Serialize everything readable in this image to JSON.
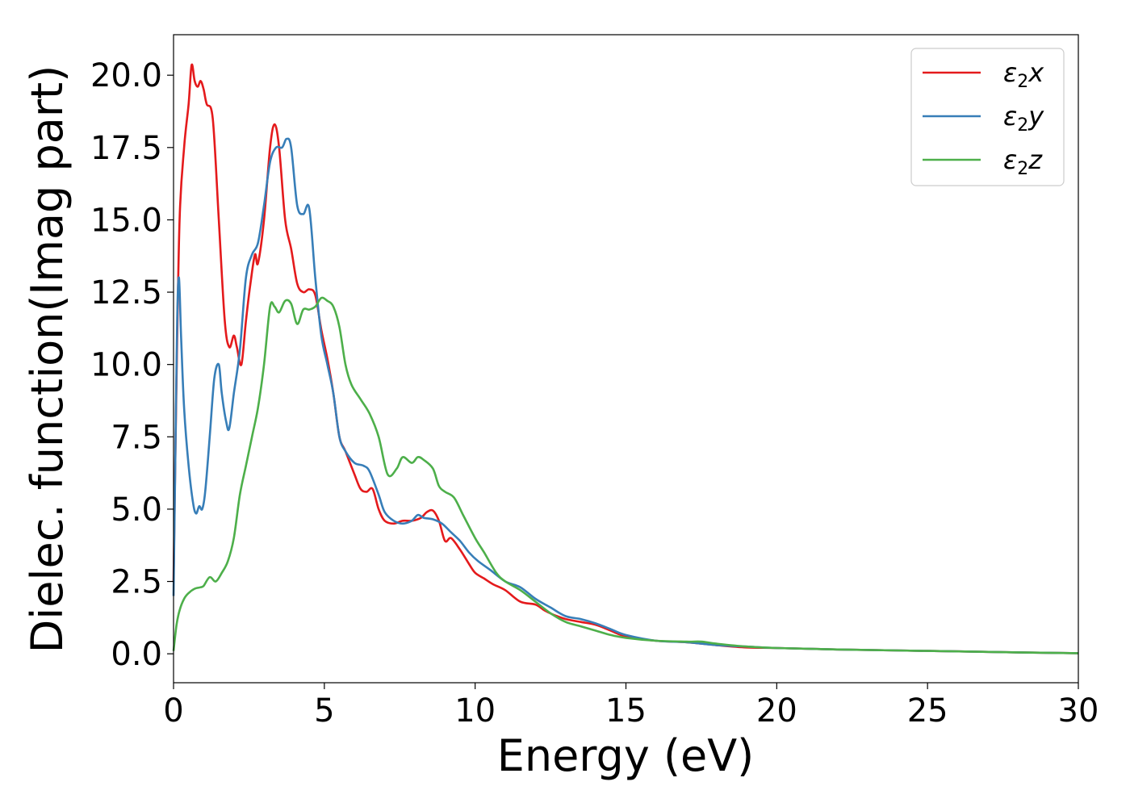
{
  "chart_data": {
    "type": "line",
    "title": "",
    "xlabel": "Energy (eV)",
    "ylabel": "Dielec. function(Imag part)",
    "xlim": [
      0,
      30
    ],
    "ylim": [
      -1.0,
      21.4
    ],
    "xticks": [
      "0",
      "5",
      "10",
      "15",
      "20",
      "25",
      "30"
    ],
    "xtick_values": [
      0,
      5,
      10,
      15,
      20,
      25,
      30
    ],
    "yticks": [
      "0.0",
      "2.5",
      "5.0",
      "7.5",
      "10.0",
      "12.5",
      "15.0",
      "17.5",
      "20.0"
    ],
    "ytick_values": [
      0,
      2.5,
      5,
      7.5,
      10,
      12.5,
      15,
      17.5,
      20
    ],
    "grid": false,
    "legend": "top-right",
    "series": [
      {
        "name": "ε₂x",
        "legend_base": "ε",
        "legend_sub": "2",
        "legend_var": "x",
        "color": "#e41a1c",
        "x": [
          0,
          0.1,
          0.2,
          0.35,
          0.5,
          0.6,
          0.7,
          0.8,
          0.9,
          1.0,
          1.1,
          1.3,
          1.5,
          1.7,
          1.85,
          2.0,
          2.1,
          2.25,
          2.4,
          2.55,
          2.7,
          2.8,
          3.0,
          3.2,
          3.35,
          3.5,
          3.7,
          3.9,
          4.1,
          4.3,
          4.5,
          4.7,
          4.9,
          5.1,
          5.3,
          5.5,
          5.7,
          6.0,
          6.2,
          6.4,
          6.6,
          6.8,
          7.0,
          7.3,
          7.6,
          7.9,
          8.2,
          8.4,
          8.6,
          8.8,
          9.0,
          9.2,
          9.5,
          9.8,
          10.0,
          10.3,
          10.6,
          11.0,
          11.5,
          12.0,
          12.3,
          12.6,
          13.0,
          13.5,
          14.0,
          14.5,
          15.0,
          16.0,
          17.0,
          18.0,
          19.0,
          20.0,
          22.0,
          25.0,
          28.0,
          30.0
        ],
        "y": [
          2.5,
          9.5,
          15.0,
          17.5,
          19.0,
          20.35,
          19.8,
          19.6,
          19.8,
          19.5,
          19.0,
          18.5,
          15.0,
          11.5,
          10.6,
          11.0,
          10.6,
          10.0,
          11.5,
          12.8,
          13.8,
          13.5,
          15.0,
          17.5,
          18.3,
          17.5,
          15.0,
          14.0,
          12.8,
          12.5,
          12.6,
          12.4,
          11.2,
          10.2,
          9.0,
          7.5,
          7.0,
          6.2,
          5.7,
          5.6,
          5.7,
          5.0,
          4.6,
          4.5,
          4.6,
          4.6,
          4.7,
          4.9,
          4.95,
          4.6,
          3.9,
          4.0,
          3.6,
          3.1,
          2.8,
          2.6,
          2.4,
          2.2,
          1.8,
          1.7,
          1.5,
          1.35,
          1.2,
          1.1,
          1.0,
          0.8,
          0.6,
          0.45,
          0.4,
          0.3,
          0.22,
          0.2,
          0.15,
          0.1,
          0.05,
          0.02
        ]
      },
      {
        "name": "ε₂y",
        "legend_base": "ε",
        "legend_sub": "2",
        "legend_var": "y",
        "color": "#377eb8",
        "x": [
          0,
          0.05,
          0.12,
          0.18,
          0.25,
          0.35,
          0.5,
          0.65,
          0.75,
          0.85,
          0.95,
          1.05,
          1.2,
          1.35,
          1.5,
          1.6,
          1.75,
          1.85,
          2.0,
          2.2,
          2.4,
          2.6,
          2.8,
          3.0,
          3.2,
          3.4,
          3.6,
          3.75,
          3.9,
          4.1,
          4.3,
          4.5,
          4.7,
          4.9,
          5.1,
          5.3,
          5.5,
          5.7,
          6.0,
          6.3,
          6.5,
          6.8,
          7.0,
          7.3,
          7.6,
          7.9,
          8.1,
          8.3,
          8.6,
          8.9,
          9.2,
          9.5,
          9.8,
          10.1,
          10.5,
          11.0,
          11.5,
          12.0,
          12.5,
          13.0,
          13.5,
          14.0,
          14.5,
          15.0,
          16.0,
          17.0,
          18.0,
          19.0,
          20.0,
          22.0,
          25.0,
          28.0,
          30.0
        ],
        "y": [
          2.0,
          6.0,
          11.5,
          13.0,
          11.0,
          8.5,
          6.5,
          5.2,
          4.85,
          5.1,
          5.0,
          5.6,
          7.5,
          9.5,
          10.0,
          9.0,
          8.0,
          7.8,
          9.0,
          10.5,
          13.0,
          13.8,
          14.2,
          15.5,
          17.0,
          17.5,
          17.5,
          17.8,
          17.5,
          15.5,
          15.2,
          15.4,
          13.0,
          11.0,
          10.0,
          9.0,
          7.5,
          7.0,
          6.6,
          6.5,
          6.3,
          5.5,
          4.9,
          4.6,
          4.5,
          4.6,
          4.8,
          4.7,
          4.65,
          4.5,
          4.2,
          3.9,
          3.5,
          3.2,
          2.9,
          2.5,
          2.3,
          1.9,
          1.6,
          1.3,
          1.2,
          1.05,
          0.85,
          0.65,
          0.45,
          0.4,
          0.3,
          0.25,
          0.2,
          0.15,
          0.1,
          0.05,
          0.02
        ]
      },
      {
        "name": "ε₂z",
        "legend_base": "ε",
        "legend_sub": "2",
        "legend_var": "z",
        "color": "#4daf4a",
        "x": [
          0,
          0.1,
          0.2,
          0.35,
          0.5,
          0.7,
          0.9,
          1.0,
          1.2,
          1.4,
          1.6,
          1.8,
          2.0,
          2.2,
          2.4,
          2.6,
          2.8,
          3.0,
          3.2,
          3.35,
          3.5,
          3.7,
          3.9,
          4.1,
          4.3,
          4.5,
          4.7,
          4.9,
          5.1,
          5.3,
          5.5,
          5.7,
          5.9,
          6.2,
          6.5,
          6.8,
          7.1,
          7.4,
          7.6,
          7.9,
          8.1,
          8.3,
          8.6,
          8.8,
          9.0,
          9.3,
          9.6,
          10.0,
          10.3,
          10.7,
          11.0,
          11.5,
          12.0,
          12.5,
          13.0,
          13.5,
          14.0,
          14.5,
          15.0,
          16.0,
          17.0,
          17.5,
          18.0,
          19.0,
          20.0,
          22.0,
          25.0,
          28.0,
          30.0
        ],
        "y": [
          0.1,
          1.0,
          1.5,
          1.9,
          2.1,
          2.25,
          2.3,
          2.35,
          2.65,
          2.5,
          2.8,
          3.2,
          4.0,
          5.5,
          6.5,
          7.5,
          8.5,
          10.0,
          12.0,
          12.0,
          11.8,
          12.2,
          12.1,
          11.4,
          11.9,
          11.9,
          12.0,
          12.3,
          12.2,
          12.0,
          11.3,
          10.0,
          9.3,
          8.8,
          8.3,
          7.5,
          6.2,
          6.4,
          6.8,
          6.6,
          6.8,
          6.7,
          6.4,
          5.8,
          5.6,
          5.4,
          4.8,
          4.0,
          3.5,
          2.8,
          2.5,
          2.2,
          1.8,
          1.4,
          1.1,
          0.95,
          0.8,
          0.65,
          0.55,
          0.45,
          0.42,
          0.42,
          0.35,
          0.25,
          0.2,
          0.15,
          0.1,
          0.05,
          0.02
        ]
      }
    ]
  }
}
